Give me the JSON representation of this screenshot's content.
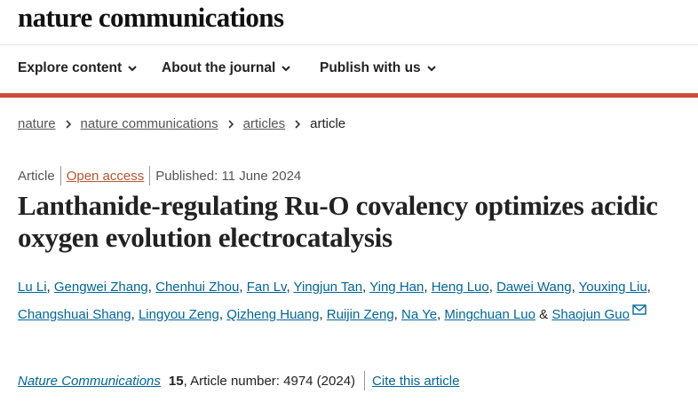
{
  "header": {
    "logo": "nature communications"
  },
  "nav": [
    "Explore content",
    "About the journal",
    "Publish with us"
  ],
  "breadcrumbs": [
    "nature",
    "nature communications",
    "articles",
    "article"
  ],
  "meta": {
    "type": "Article",
    "access": "Open access",
    "published": "Published: 11 June 2024"
  },
  "title": "Lanthanide-regulating Ru-O covalency optimizes acidic oxygen evolution electrocatalysis",
  "authors": {
    "names": [
      "Lu Li",
      "Gengwei Zhang",
      "Chenhui Zhou",
      "Fan Lv",
      "Yingjun Tan",
      "Ying Han",
      "Heng Luo",
      "Dawei Wang",
      "Youxing Liu",
      "Changshuai Shang",
      "Lingyou Zeng",
      "Qizheng Huang",
      "Ruijin Zeng",
      "Na Ye",
      "Mingchuan Luo",
      "Shaojun Guo"
    ],
    "separator": ",",
    "conjunction": "&"
  },
  "citation": {
    "journal": "Nature Communications",
    "volume": "15",
    "details": ", Article number: 4974 (2024)",
    "cite_link": "Cite this article"
  }
}
